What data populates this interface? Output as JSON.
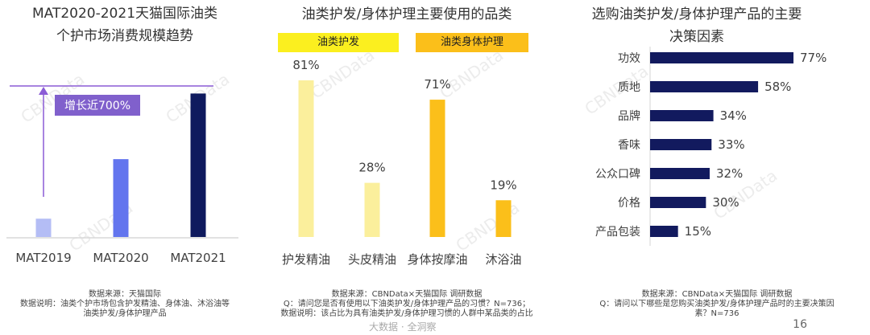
{
  "watermark": "CBNData",
  "page_number": "16",
  "footer_brand": "大数据 · 全洞察",
  "panel1": {
    "title_line1": "MAT2020-2021天猫国际油类",
    "title_line2": "个护市场消费规模趋势",
    "growth_label": "增长近700%",
    "source_line1": "数据来源：天猫国际",
    "source_line2": "数据说明：油类个护市场包含护发精油、身体油、沐浴油等",
    "source_line3": "油类护发/身体护理产品"
  },
  "panel2": {
    "title": "油类护发/身体护理主要使用的品类",
    "group1_label": "油类护发",
    "group2_label": "油类身体护理",
    "source_line1": "数据来源：CBNData×天猫国际 调研数据",
    "source_line2": "Q：请问您是否有使用以下油类护发/身体护理产品的习惯？N=736；",
    "source_line3": "数据说明：该占比为具有油类护发/身体护理习惯的人群中某品类的占比"
  },
  "panel3": {
    "title_line1": "选购油类护发/身体护理产品的主要",
    "title_line2": "决策因素",
    "source_line1": "数据来源：CBNData×天猫国际 调研数据",
    "source_line2": "Q：请问以下哪些是您购买油类护发/身体护理产品时的主要决策因",
    "source_line3": "素？N=736"
  },
  "chart_data": [
    {
      "type": "bar",
      "title": "MAT2020-2021天猫国际油类个护市场消费规模趋势",
      "categories": [
        "MAT2019",
        "MAT2020",
        "MAT2021"
      ],
      "values": [
        1.2,
        5.1,
        9.4
      ],
      "value_axis_visible": false,
      "annotation": "增长近700%",
      "colors": [
        "#b4bdf5",
        "#6375ee",
        "#0f1a5e"
      ]
    },
    {
      "type": "bar",
      "title": "油类护发/身体护理主要使用的品类",
      "groups": [
        {
          "name": "油类护发",
          "categories": [
            "护发精油",
            "头皮精油"
          ],
          "values": [
            81,
            28
          ]
        },
        {
          "name": "油类身体护理",
          "categories": [
            "身体按摩油",
            "沐浴油"
          ],
          "values": [
            71,
            19
          ]
        }
      ],
      "value_suffix": "%",
      "colors": [
        "#fbef9c",
        "#fbbf1a"
      ]
    },
    {
      "type": "bar",
      "orientation": "horizontal",
      "title": "选购油类护发/身体护理产品的主要决策因素",
      "categories": [
        "功效",
        "质地",
        "品牌",
        "香味",
        "公众口碑",
        "价格",
        "产品包装"
      ],
      "values": [
        77,
        58,
        34,
        33,
        32,
        30,
        15
      ],
      "value_suffix": "%",
      "color": "#121a5e"
    }
  ]
}
